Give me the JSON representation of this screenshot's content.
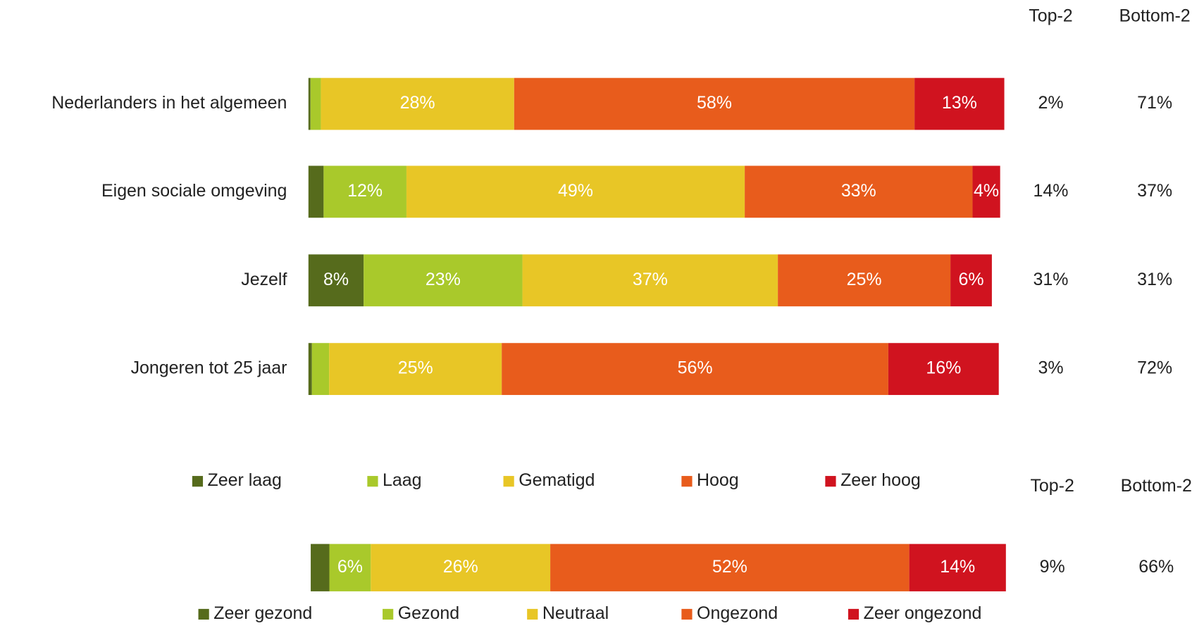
{
  "chart_data": [
    {
      "type": "bar",
      "orientation": "horizontal",
      "stacked": true,
      "categories": [
        "Nederlanders in het algemeen",
        "Eigen sociale omgeving",
        "Jezelf",
        "Jongeren tot 25 jaar"
      ],
      "xlim": [
        0,
        100
      ],
      "series": [
        {
          "name": "Zeer laag",
          "color": "#566b1c",
          "values": [
            0.3,
            2.2,
            8,
            0.5
          ],
          "value_labels": [
            null,
            null,
            "8%",
            null
          ]
        },
        {
          "name": "Laag",
          "color": "#a9c92b",
          "values": [
            1.5,
            12,
            23,
            2.5
          ],
          "value_labels": [
            null,
            "12%",
            "23%",
            null
          ]
        },
        {
          "name": "Gematigd",
          "color": "#e8c626",
          "values": [
            28,
            49,
            37,
            25
          ],
          "value_labels": [
            "28%",
            "49%",
            "37%",
            "25%"
          ]
        },
        {
          "name": "Hoog",
          "color": "#e85c1c",
          "values": [
            58,
            33,
            25,
            56
          ],
          "value_labels": [
            "58%",
            "33%",
            "25%",
            "56%"
          ]
        },
        {
          "name": "Zeer hoog",
          "color": "#d0131f",
          "values": [
            13,
            4,
            6,
            16
          ],
          "value_labels": [
            "13%",
            "4%",
            "6%",
            "16%"
          ]
        }
      ],
      "summary": {
        "headers": [
          "Top-2",
          "Bottom-2"
        ],
        "rows": [
          [
            "2%",
            "71%"
          ],
          [
            "14%",
            "37%"
          ],
          [
            "31%",
            "31%"
          ],
          [
            "3%",
            "72%"
          ]
        ]
      }
    },
    {
      "type": "bar",
      "orientation": "horizontal",
      "stacked": true,
      "categories": [
        null
      ],
      "xlim": [
        0,
        100
      ],
      "series": [
        {
          "name": "Zeer gezond",
          "color": "#566b1c",
          "values": [
            2.7
          ],
          "value_labels": [
            null
          ]
        },
        {
          "name": "Gezond",
          "color": "#a9c92b",
          "values": [
            6
          ],
          "value_labels": [
            "6%"
          ]
        },
        {
          "name": "Neutraal",
          "color": "#e8c626",
          "values": [
            26
          ],
          "value_labels": [
            "26%"
          ]
        },
        {
          "name": "Ongezond",
          "color": "#e85c1c",
          "values": [
            52
          ],
          "value_labels": [
            "52%"
          ]
        },
        {
          "name": "Zeer ongezond",
          "color": "#d0131f",
          "values": [
            14
          ],
          "value_labels": [
            "14%"
          ]
        }
      ],
      "summary": {
        "headers": [
          "Top-2",
          "Bottom-2"
        ],
        "rows": [
          [
            "9%",
            "66%"
          ]
        ]
      }
    }
  ]
}
